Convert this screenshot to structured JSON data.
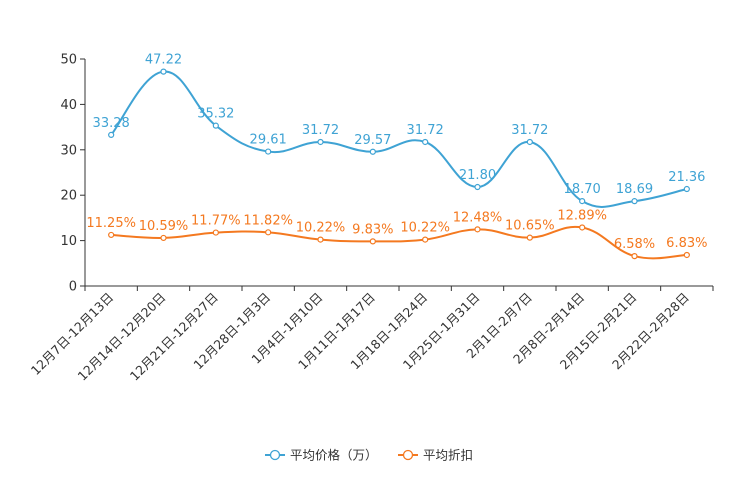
{
  "chart_data": {
    "type": "line",
    "title": "",
    "xlabel": "",
    "ylabel": "",
    "ylim": [
      0,
      50
    ],
    "yticks": [
      0,
      10,
      20,
      30,
      40,
      50
    ],
    "grid": false,
    "legend_position": "bottom-center",
    "categories": [
      "12月7日-12月13日",
      "12月14日-12月20日",
      "12月21日-12月27日",
      "12月28日-1月3日",
      "1月4日-1月10日",
      "1月11日-1月17日",
      "1月18日-1月24日",
      "1月25日-1月31日",
      "2月1日-2月7日",
      "2月8日-2月14日",
      "2月15日-2月21日",
      "2月22日-2月28日"
    ],
    "series": [
      {
        "name": "平均价格（万）",
        "color": "#3fa3d4",
        "values": [
          33.28,
          47.22,
          35.32,
          29.61,
          31.72,
          29.57,
          31.72,
          21.8,
          31.72,
          18.7,
          18.69,
          21.36
        ],
        "labels": [
          "33.28",
          "47.22",
          "35.32",
          "29.61",
          "31.72",
          "29.57",
          "31.72",
          "21.80",
          "31.72",
          "18.70",
          "18.69",
          "21.36"
        ]
      },
      {
        "name": "平均折扣",
        "color": "#f47920",
        "values": [
          11.25,
          10.59,
          11.77,
          11.82,
          10.22,
          9.83,
          10.22,
          12.48,
          10.65,
          12.89,
          6.58,
          6.83
        ],
        "labels": [
          "11.25%",
          "10.59%",
          "11.77%",
          "11.82%",
          "10.22%",
          "9.83%",
          "10.22%",
          "12.48%",
          "10.65%",
          "12.89%",
          "6.58%",
          "6.83%"
        ]
      }
    ]
  }
}
